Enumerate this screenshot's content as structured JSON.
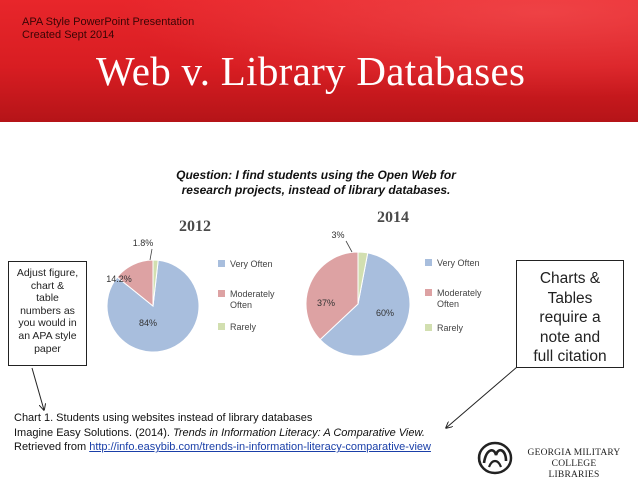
{
  "slide": {
    "meta_line1": "APA Style PowerPoint Presentation",
    "meta_line2": "Created Sept 2014",
    "title": "Web v. Library Databases"
  },
  "notes": {
    "left": [
      "Adjust figure,",
      "chart &",
      "table",
      "numbers as",
      "you would in",
      "an APA style",
      "paper"
    ],
    "right": [
      "Charts &",
      "Tables",
      "require a",
      "note and",
      "full citation"
    ]
  },
  "caption": {
    "line1": "Chart 1. Students using websites instead of library databases",
    "line2_prefix": "Imagine Easy Solutions. (2014). ",
    "line2_title": "Trends in Information Literacy: A Comparative View.",
    "line3_prefix": "Retrieved from ",
    "link": "http://info.easybib.com/trends-in-information-literacy-comparative-view"
  },
  "logo": {
    "line1": "GEORGIA MILITARY COLLEGE",
    "line2": "LIBRARIES"
  },
  "colors": {
    "banner": "#d81d22",
    "very_often": "#a8bedd",
    "moderately_often": "#dda2a3",
    "rarely": "#d2dfb0"
  },
  "chart_data": {
    "type": "pie",
    "title": "Question: I find students using the Open Web for research projects, instead of library databases.",
    "title_lines": [
      "Question: I find students using the Open Web for",
      "research projects, instead of library databases."
    ],
    "categories": [
      "Very Often",
      "Moderately Often",
      "Rarely"
    ],
    "legend_lines": [
      [
        "Very Often"
      ],
      [
        "Moderately",
        "Often"
      ],
      [
        "Rarely"
      ]
    ],
    "legend_position": "right",
    "charts": [
      {
        "name": "2012",
        "values": [
          84,
          14.2,
          1.8
        ],
        "labels": [
          "84%",
          "14.2%",
          "1.8%"
        ]
      },
      {
        "name": "2014",
        "values": [
          60,
          37,
          3
        ],
        "labels": [
          "60%",
          "37%",
          "3%"
        ]
      }
    ]
  }
}
